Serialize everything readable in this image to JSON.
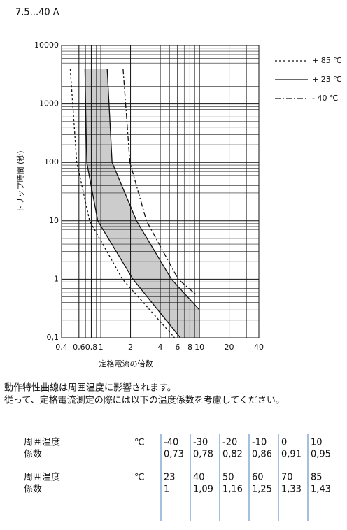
{
  "title": "7.5...40 A",
  "chart_data": {
    "type": "line",
    "x_log": true,
    "y_log": true,
    "xlabel": "定格電流の倍数",
    "ylabel": "トリップ時間 (秒)",
    "xlim": [
      0.4,
      40
    ],
    "ylim": [
      0.1,
      10000
    ],
    "xticks": [
      {
        "value": 0.4,
        "label": "0,4"
      },
      {
        "value": 0.6,
        "label": "0,6"
      },
      {
        "value": 0.8,
        "label": "0,8"
      },
      1,
      2,
      4,
      6,
      8,
      10,
      20,
      40
    ],
    "yticks": [
      {
        "value": 0.1,
        "label": "0,1"
      },
      1,
      10,
      100,
      1000,
      10000
    ],
    "minor_xticks": [
      0.5,
      0.7,
      0.9,
      3,
      5,
      7,
      9,
      30
    ],
    "minor_yticks": [
      0.2,
      0.3,
      0.4,
      0.5,
      0.6,
      0.7,
      0.8,
      0.9,
      2,
      3,
      4,
      5,
      6,
      7,
      8,
      9,
      20,
      30,
      40,
      50,
      60,
      70,
      80,
      90,
      200,
      300,
      400,
      500,
      600,
      700,
      800,
      900,
      2000,
      3000,
      4000,
      5000,
      6000,
      7000,
      8000,
      9000
    ],
    "band_color": "#cccccc",
    "series": [
      {
        "name": "+ 85 ℃",
        "dash": "3,3",
        "lines": [
          {
            "x": [
              0.49,
              0.57,
              0.77,
              1.66,
              5.6
            ],
            "y": [
              4000,
              100,
              10,
              1,
              0.1
            ]
          }
        ]
      },
      {
        "name": "+ 23 ℃",
        "dash": "",
        "lines": [
          {
            "x": [
              0.69,
              0.72,
              0.93,
              2.12,
              6.4
            ],
            "y": [
              4000,
              100,
              10,
              1,
              0.1
            ]
          },
          {
            "x": [
              1.16,
              1.3,
              2.3,
              5.2,
              10
            ],
            "y": [
              4000,
              100,
              10,
              1,
              0.3
            ]
          }
        ]
      },
      {
        "name": "- 40 ℃",
        "dash": "8,3,2,3",
        "lines": [
          {
            "x": [
              1.68,
              1.97,
              2.9,
              6.1,
              9.2
            ],
            "y": [
              4000,
              100,
              10,
              1,
              0.55
            ]
          }
        ]
      }
    ]
  },
  "note": [
    "動作特性曲線は周囲温度に影響されます。",
    "従って、定格電流測定の際には以下の温度係数を考慮してください。"
  ],
  "table": {
    "rows": [
      {
        "labels": [
          "周囲温度",
          "係数"
        ],
        "unit": "℃",
        "temps": [
          "-40",
          "-30",
          "-20",
          "-10",
          "0",
          "10"
        ],
        "factors": [
          "0,73",
          "0,78",
          "0,82",
          "0,86",
          "0,91",
          "0,95"
        ]
      },
      {
        "labels": [
          "周囲温度",
          "係数"
        ],
        "unit": "℃",
        "temps": [
          "23",
          "40",
          "50",
          "60",
          "70",
          "85"
        ],
        "factors": [
          "1",
          "1,09",
          "1,16",
          "1,25",
          "1,33",
          "1,43"
        ]
      }
    ]
  }
}
